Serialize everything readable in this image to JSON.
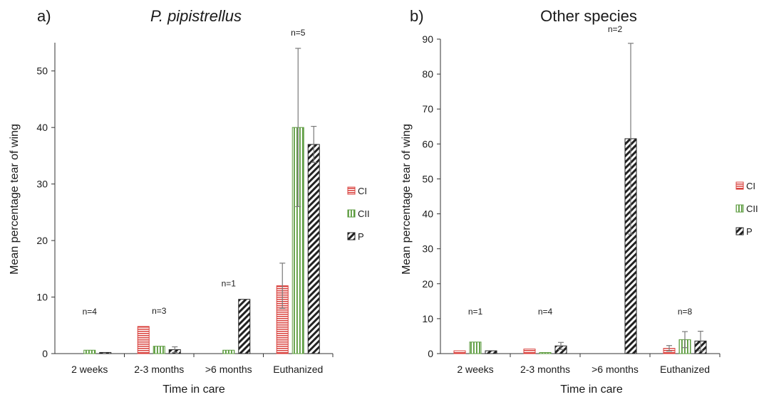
{
  "chart_data": [
    {
      "type": "bar",
      "panel_label": "a)",
      "title": "P. pipistrellus",
      "title_italic": true,
      "xlabel": "Time in care",
      "ylabel": "Mean percentage tear of wing",
      "ylim": [
        0,
        55
      ],
      "yticks": [
        0,
        10,
        20,
        30,
        40,
        50
      ],
      "categories": [
        "2 weeks",
        "2-3 months",
        ">6 months",
        "Euthanized"
      ],
      "n_labels": [
        "n=4",
        "n=3",
        "n=1",
        "n=5"
      ],
      "series": [
        {
          "name": "CI",
          "values": [
            0,
            4.8,
            0,
            12
          ],
          "errors": [
            0,
            0,
            0,
            4
          ]
        },
        {
          "name": "CII",
          "values": [
            0.6,
            1.3,
            0.6,
            40
          ],
          "errors": [
            0,
            0,
            0,
            14
          ]
        },
        {
          "name": "P",
          "values": [
            0.2,
            0.7,
            9.6,
            37
          ],
          "errors": [
            0,
            0.5,
            0,
            3.2
          ]
        }
      ],
      "legend_position": "right",
      "grid": false
    },
    {
      "type": "bar",
      "panel_label": "b)",
      "title": "Other species",
      "title_italic": false,
      "xlabel": "Time in care",
      "ylabel": "Mean percentage tear of wing",
      "ylim": [
        0,
        90
      ],
      "yticks": [
        0,
        10,
        20,
        30,
        40,
        50,
        60,
        70,
        80,
        90
      ],
      "categories": [
        "2 weeks",
        "2-3 months",
        ">6 months",
        "Euthanized"
      ],
      "n_labels": [
        "n=1",
        "n=4",
        "n=2",
        "n=8"
      ],
      "series": [
        {
          "name": "CI",
          "values": [
            0.8,
            1.3,
            0,
            1.5
          ],
          "errors": [
            0,
            0,
            0,
            0.8
          ]
        },
        {
          "name": "CII",
          "values": [
            3.3,
            0.3,
            0,
            4
          ],
          "errors": [
            0,
            0,
            0,
            2.3
          ]
        },
        {
          "name": "P",
          "values": [
            0.8,
            2.2,
            61.5,
            3.6
          ],
          "errors": [
            0,
            1,
            27.3,
            2.8
          ]
        }
      ],
      "legend_position": "right",
      "grid": false
    }
  ],
  "colors": {
    "CI": "#d9413d",
    "CII": "#5a9a3c",
    "P": "#222222",
    "error_bar": "#7a7a7a"
  }
}
